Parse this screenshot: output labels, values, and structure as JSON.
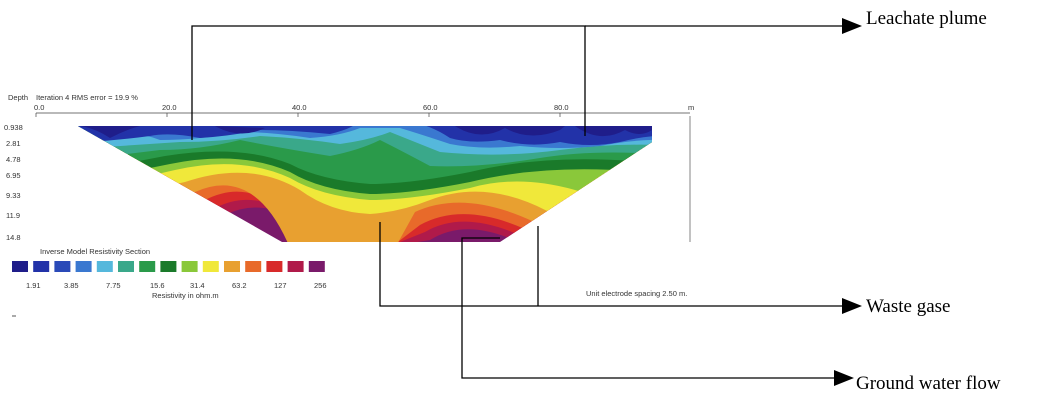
{
  "header": {
    "depth_label": "Depth",
    "iteration_text": "Iteration 4 RMS error = 19.9 %"
  },
  "x_axis": {
    "ticks": [
      "0.0",
      "20.0",
      "40.0",
      "60.0",
      "80.0"
    ],
    "unit": "m"
  },
  "depth_ticks": [
    "0.938",
    "2.81",
    "4.78",
    "6.95",
    "9.33",
    "11.9",
    "14.8"
  ],
  "section_title": "Inverse Model Resistivity Section",
  "color_scale": {
    "colors": [
      "#1f1d8a",
      "#2232a8",
      "#2a4ab8",
      "#3a78d0",
      "#55b8dc",
      "#3aa88a",
      "#2a9a4a",
      "#1a7a2a",
      "#8ac83a",
      "#f0e83a",
      "#e8a030",
      "#e86a2a",
      "#d82a2a",
      "#b01a4a",
      "#7a1a6a"
    ],
    "tick_labels": [
      "1.91",
      "3.85",
      "7.75",
      "15.6",
      "31.4",
      "63.2",
      "127",
      "256"
    ],
    "unit_label": "Resistivity in ohm.m"
  },
  "spacing_label": "Unit electrode spacing 2.50 m.",
  "callouts": {
    "leachate": "Leachate plume",
    "waste_gas": "Waste gase",
    "groundwater": "Ground water flow"
  }
}
